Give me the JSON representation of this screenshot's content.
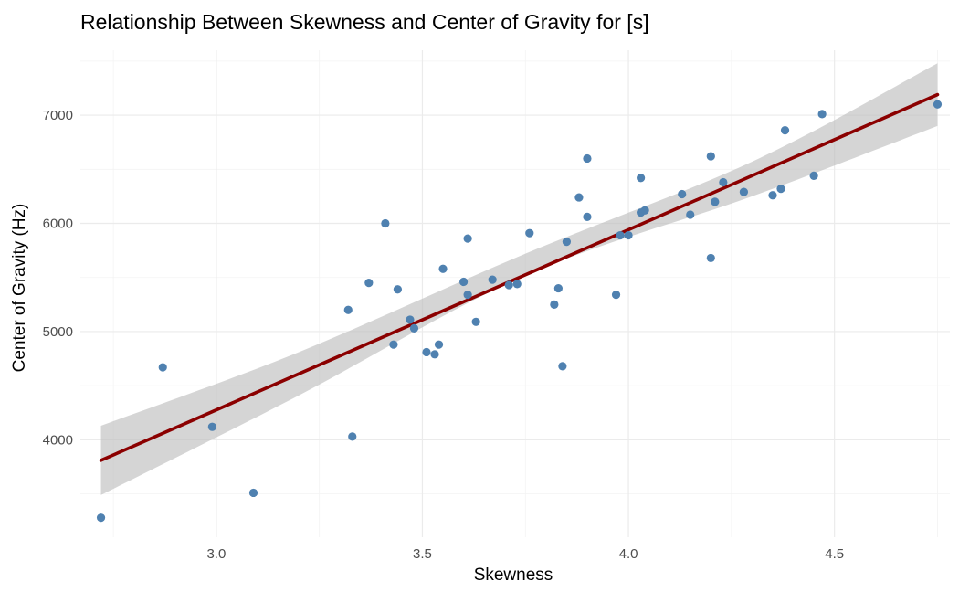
{
  "chart_data": {
    "type": "scatter",
    "title": "Relationship Between Skewness and Center of Gravity for [s]",
    "xlabel": "Skewness",
    "ylabel": "Center of Gravity (Hz)",
    "xlim": [
      2.67,
      4.78
    ],
    "ylim": [
      3100,
      7600
    ],
    "x_ticks": [
      3.0,
      3.5,
      4.0,
      4.5
    ],
    "x_tick_labels": [
      "3.0",
      "3.5",
      "4.0",
      "4.5"
    ],
    "y_ticks": [
      4000,
      5000,
      6000,
      7000
    ],
    "y_tick_labels": [
      "4000",
      "5000",
      "6000",
      "7000"
    ],
    "grid": true,
    "legend": "none",
    "colors": {
      "points": "#4f81b0",
      "line": "#8b0000",
      "band": "#bfbfbf"
    },
    "points": [
      {
        "x": 2.72,
        "y": 3280
      },
      {
        "x": 2.87,
        "y": 4670
      },
      {
        "x": 2.99,
        "y": 4120
      },
      {
        "x": 3.09,
        "y": 3510
      },
      {
        "x": 3.32,
        "y": 5200
      },
      {
        "x": 3.33,
        "y": 4030
      },
      {
        "x": 3.37,
        "y": 5450
      },
      {
        "x": 3.41,
        "y": 6000
      },
      {
        "x": 3.43,
        "y": 4880
      },
      {
        "x": 3.44,
        "y": 5390
      },
      {
        "x": 3.47,
        "y": 5110
      },
      {
        "x": 3.48,
        "y": 5030
      },
      {
        "x": 3.51,
        "y": 4810
      },
      {
        "x": 3.53,
        "y": 4790
      },
      {
        "x": 3.54,
        "y": 4880
      },
      {
        "x": 3.55,
        "y": 5580
      },
      {
        "x": 3.6,
        "y": 5460
      },
      {
        "x": 3.61,
        "y": 5860
      },
      {
        "x": 3.61,
        "y": 5340
      },
      {
        "x": 3.63,
        "y": 5090
      },
      {
        "x": 3.67,
        "y": 5480
      },
      {
        "x": 3.71,
        "y": 5430
      },
      {
        "x": 3.73,
        "y": 5440
      },
      {
        "x": 3.76,
        "y": 5910
      },
      {
        "x": 3.82,
        "y": 5250
      },
      {
        "x": 3.83,
        "y": 5400
      },
      {
        "x": 3.84,
        "y": 4680
      },
      {
        "x": 3.85,
        "y": 5830
      },
      {
        "x": 3.88,
        "y": 6240
      },
      {
        "x": 3.9,
        "y": 6600
      },
      {
        "x": 3.9,
        "y": 6060
      },
      {
        "x": 3.97,
        "y": 5340
      },
      {
        "x": 3.98,
        "y": 5890
      },
      {
        "x": 4.0,
        "y": 5890
      },
      {
        "x": 4.03,
        "y": 6420
      },
      {
        "x": 4.03,
        "y": 6100
      },
      {
        "x": 4.04,
        "y": 6120
      },
      {
        "x": 4.13,
        "y": 6270
      },
      {
        "x": 4.15,
        "y": 6080
      },
      {
        "x": 4.2,
        "y": 6620
      },
      {
        "x": 4.2,
        "y": 5680
      },
      {
        "x": 4.21,
        "y": 6200
      },
      {
        "x": 4.23,
        "y": 6380
      },
      {
        "x": 4.28,
        "y": 6290
      },
      {
        "x": 4.35,
        "y": 6260
      },
      {
        "x": 4.37,
        "y": 6320
      },
      {
        "x": 4.38,
        "y": 6860
      },
      {
        "x": 4.45,
        "y": 6440
      },
      {
        "x": 4.47,
        "y": 7010
      },
      {
        "x": 4.75,
        "y": 7100
      }
    ],
    "regression_line": [
      {
        "x": 2.72,
        "y": 3810
      },
      {
        "x": 4.75,
        "y": 7190
      }
    ],
    "confidence_band": [
      {
        "x": 2.72,
        "lower": 3490,
        "upper": 4130
      },
      {
        "x": 3.2,
        "lower": 4410,
        "upper": 4810
      },
      {
        "x": 3.75,
        "lower": 5520,
        "upper": 5720
      },
      {
        "x": 4.3,
        "lower": 6250,
        "upper": 6570
      },
      {
        "x": 4.75,
        "lower": 6900,
        "upper": 7480
      }
    ]
  }
}
